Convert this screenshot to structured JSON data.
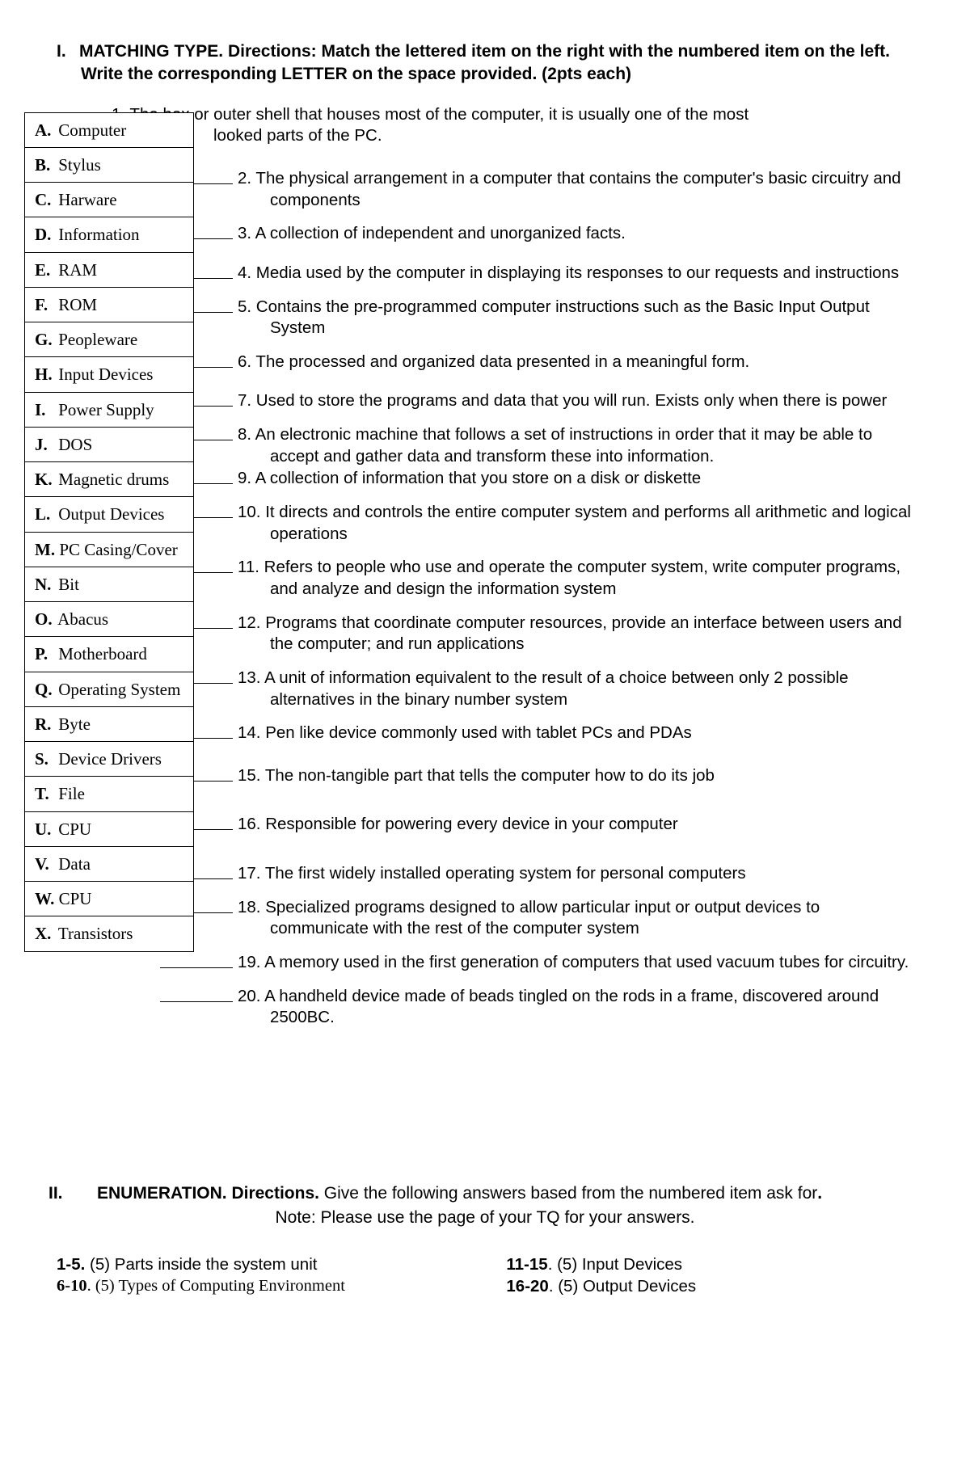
{
  "section1": {
    "roman": "I.",
    "title": "MATCHING TYPE. Directions:  Match the lettered item on the right with the numbered item on the left. Write the corresponding LETTER on the space provided. (2pts each)"
  },
  "choices": [
    {
      "letter": "A.",
      "term": "Computer"
    },
    {
      "letter": "B.",
      "term": "Stylus"
    },
    {
      "letter": "C.",
      "term": "Harware"
    },
    {
      "letter": "D.",
      "term": "Information"
    },
    {
      "letter": "E.",
      "term": "RAM"
    },
    {
      "letter": "F.",
      "term": "ROM"
    },
    {
      "letter": "G.",
      "term": "Peopleware"
    },
    {
      "letter": "H.",
      "term": "Input Devices"
    },
    {
      "letter": "I.",
      "term": "Power Supply"
    },
    {
      "letter": "J.",
      "term": "DOS"
    },
    {
      "letter": "K.",
      "term": "Magnetic drums"
    },
    {
      "letter": "L.",
      "term": "Output Devices"
    },
    {
      "letter": "M.",
      "term": "PC Casing/Cover"
    },
    {
      "letter": "N.",
      "term": "Bit"
    },
    {
      "letter": "O.",
      "term": "Abacus"
    },
    {
      "letter": "P.",
      "term": "Motherboard"
    },
    {
      "letter": "Q.",
      "term": "Operating System"
    },
    {
      "letter": "R.",
      "term": "Byte"
    },
    {
      "letter": "S.",
      "term": "Device Drivers"
    },
    {
      "letter": "T.",
      "term": "File"
    },
    {
      "letter": "U.",
      "term": "CPU"
    },
    {
      "letter": "V.",
      "term": "Data"
    },
    {
      "letter": "W.",
      "term": "CPU"
    },
    {
      "letter": "X.",
      "term": "Transistors"
    }
  ],
  "q1": {
    "line1": "1. The box or outer shell that houses most of the computer, it is usually one of the most",
    "line2": "looked parts of the PC."
  },
  "questions": [
    {
      "num": "2.",
      "text": "The physical arrangement in a computer that contains the computer's basic circuitry and components"
    },
    {
      "num": "3.",
      "text": " A collection of independent and unorganized facts."
    },
    {
      "num": "4.",
      "text": " Media used by the computer in displaying its responses to our requests and instructions"
    },
    {
      "num": "5.",
      "text": "Contains the pre-programmed computer instructions such as the Basic Input Output System"
    },
    {
      "num": "6.",
      "text": "The processed and organized data presented in a meaningful form."
    },
    {
      "num": "7.",
      "text": "Used to store the programs and data that you will run.  Exists only when there is power"
    },
    {
      "num": "8.",
      "text": "An electronic machine that follows a set of instructions in order that it may be able to accept and gather data and transform these into information."
    },
    {
      "num": "9.",
      "text": " A collection of information that you store on a disk or diskette"
    },
    {
      "num": "10.",
      "text": "It directs and controls the entire computer system and performs all arithmetic and logical operations"
    },
    {
      "num": "11.",
      "text": " Refers to people who use and operate the computer system, write computer programs, and analyze and design the information system"
    },
    {
      "num": "12.",
      "text": " Programs that coordinate computer resources, provide an interface between users and the computer; and run applications"
    },
    {
      "num": "13.",
      "text": "A unit of information equivalent to the result of a choice between only 2 possible alternatives in the binary number system"
    },
    {
      "num": "14.",
      "text": "Pen like device commonly used with tablet PCs and PDAs"
    },
    {
      "num": "15.",
      "text": "The non-tangible part that tells the computer how to do its job"
    },
    {
      "num": "16.",
      "text": "Responsible for powering every device in your computer"
    },
    {
      "num": "17.",
      "text": " The first widely installed operating system for personal computers"
    },
    {
      "num": "18.",
      "text": "Specialized programs designed to allow particular input or output devices to communicate with the rest of the computer system"
    },
    {
      "num": "19.",
      "text": "A memory used in the first generation of computers that used vacuum tubes for circuitry."
    },
    {
      "num": "20.",
      "text": "A handheld device made of beads tingled on the rods in a frame, discovered around 2500BC."
    }
  ],
  "section2": {
    "roman": "II.",
    "title": "ENUMERATION.  Directions.",
    "rest": " Give the following answers based from the numbered item ask for",
    "note": "Note: Please use the page of your TQ for your answers."
  },
  "enum": {
    "left": [
      {
        "range": "1-5.",
        "rest": " (5) Parts inside the system unit",
        "times": false
      },
      {
        "range": "6-10",
        "rest": ". (5) Types of Computing Environment",
        "times": true
      }
    ],
    "right": [
      {
        "range": "11-15",
        "rest": ". (5) Input Devices"
      },
      {
        "range": "16-20",
        "rest": ". (5) Output Devices"
      }
    ]
  }
}
